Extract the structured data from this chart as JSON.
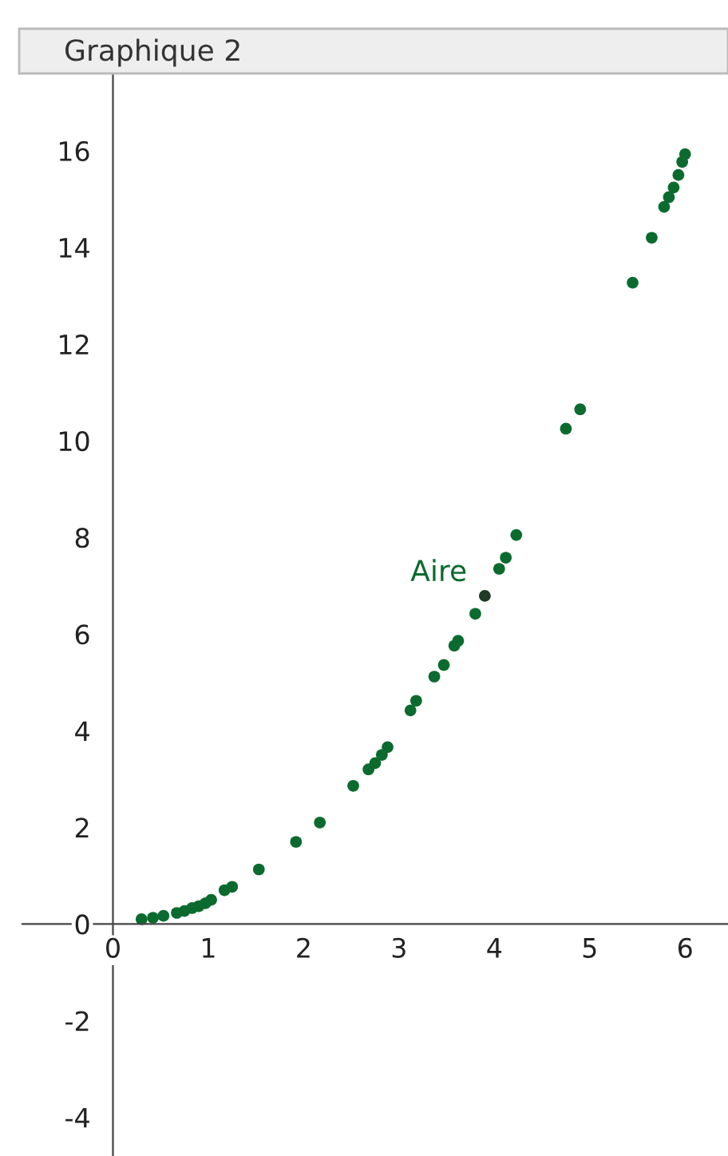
{
  "chart_data": {
    "type": "scatter",
    "title": "Graphique 2",
    "xlim": [
      -0.95,
      6.45
    ],
    "ylim": [
      -4.8,
      17.6
    ],
    "xticks": [
      0,
      1,
      2,
      3,
      4,
      5,
      6
    ],
    "yticks": [
      -4,
      -2,
      0,
      2,
      4,
      6,
      8,
      10,
      12,
      14,
      16
    ],
    "grid": false,
    "marker": "circle",
    "legend": false,
    "annotations": [
      {
        "text": "Aire",
        "x": 3.9,
        "y": 6.79
      }
    ],
    "series": [
      {
        "color": "#0b6b2e",
        "x": [
          0.3,
          0.42,
          0.53,
          0.67,
          0.75,
          0.83,
          0.9,
          0.97,
          1.03,
          1.17,
          1.25,
          1.53,
          1.92,
          2.17,
          2.52,
          2.68,
          2.75,
          2.82,
          2.88,
          3.12,
          3.18,
          3.37,
          3.47,
          3.58,
          3.62,
          3.8,
          4.05,
          4.12,
          4.23,
          4.75,
          4.9,
          5.45,
          5.65,
          5.78,
          5.83,
          5.88,
          5.93,
          5.97,
          6.0
        ],
        "values": [
          0.1,
          0.13,
          0.17,
          0.23,
          0.27,
          0.33,
          0.37,
          0.43,
          0.5,
          0.7,
          0.77,
          1.13,
          1.7,
          2.1,
          2.86,
          3.2,
          3.33,
          3.5,
          3.66,
          4.42,
          4.62,
          5.12,
          5.36,
          5.76,
          5.86,
          6.42,
          7.35,
          7.58,
          8.05,
          10.25,
          10.65,
          13.27,
          14.2,
          14.84,
          15.04,
          15.24,
          15.5,
          15.77,
          15.93
        ]
      },
      {
        "color": "#1f3a25",
        "x": [
          3.9
        ],
        "values": [
          6.79
        ]
      }
    ]
  }
}
